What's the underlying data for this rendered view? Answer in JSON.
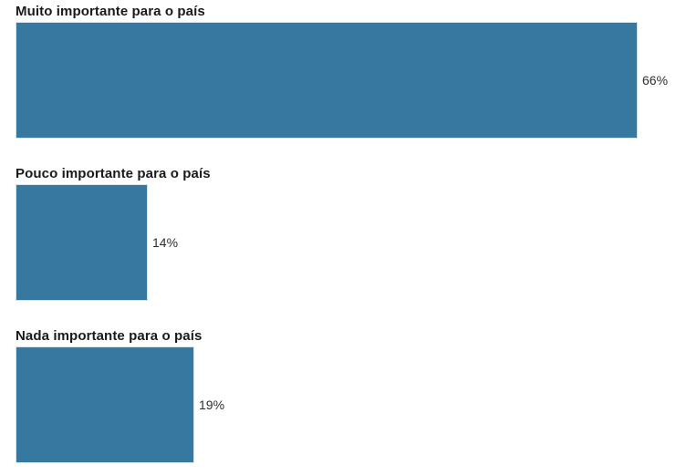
{
  "chart_data": {
    "type": "bar",
    "orientation": "horizontal",
    "title": "",
    "categories": [
      "Muito importante para o país",
      "Pouco importante para o país",
      "Nada importante para o país"
    ],
    "values": [
      66,
      14,
      19
    ],
    "value_labels": [
      "66%",
      "14%",
      "19%"
    ],
    "xlabel": "",
    "ylabel": "",
    "xlim": [
      0,
      100
    ],
    "grid": false,
    "legend": false,
    "bar_color": "#36789f",
    "bar_border_color": "#d5e3ed",
    "category_label_color": "#1a1a1a",
    "value_label_color": "#2e2e2e",
    "background_color": "#ffffff"
  }
}
